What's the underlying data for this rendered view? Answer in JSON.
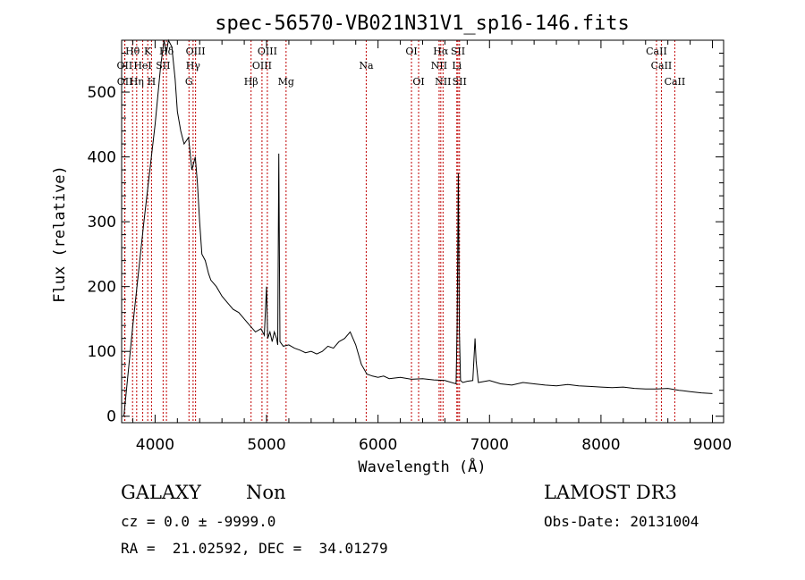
{
  "chart_data": {
    "type": "line",
    "title": "spec-56570-VB021N31V1_sp16-146.fits",
    "xlabel": "Wavelength (Å)",
    "ylabel": "Flux (relative)",
    "xlim": [
      3700,
      9100
    ],
    "ylim": [
      -10,
      580
    ],
    "xticks": [
      4000,
      5000,
      6000,
      7000,
      8000,
      9000
    ],
    "yticks": [
      0,
      100,
      200,
      300,
      400,
      500
    ],
    "grid": false,
    "series": [
      {
        "x": [
          3720,
          3800,
          3900,
          4000,
          4050,
          4080,
          4100,
          4120,
          4150,
          4180,
          4200,
          4230,
          4260,
          4300,
          4330,
          4360,
          4380,
          4400,
          4420,
          4450,
          4480,
          4500,
          4550,
          4600,
          4650,
          4700,
          4750,
          4800,
          4850,
          4900,
          4950,
          4980,
          5000,
          5010,
          5030,
          5050,
          5070,
          5090,
          5100,
          5110,
          5120,
          5150,
          5200,
          5250,
          5300,
          5350,
          5400,
          5450,
          5500,
          5550,
          5600,
          5650,
          5700,
          5750,
          5800,
          5850,
          5900,
          5950,
          6000,
          6050,
          6100,
          6200,
          6300,
          6400,
          6500,
          6600,
          6700,
          6710,
          6720,
          6730,
          6740,
          6760,
          6800,
          6850,
          6870,
          6880,
          6900,
          7000,
          7100,
          7200,
          7300,
          7400,
          7500,
          7600,
          7700,
          7800,
          7900,
          8000,
          8100,
          8200,
          8300,
          8400,
          8500,
          8600,
          8700,
          8800,
          8900,
          9000
        ],
        "y": [
          0,
          140,
          300,
          450,
          540,
          580,
          560,
          590,
          570,
          520,
          470,
          440,
          420,
          430,
          380,
          400,
          360,
          300,
          250,
          240,
          220,
          210,
          200,
          185,
          175,
          165,
          160,
          150,
          140,
          130,
          135,
          125,
          200,
          120,
          130,
          115,
          130,
          120,
          110,
          405,
          115,
          108,
          110,
          105,
          102,
          98,
          100,
          96,
          100,
          108,
          105,
          115,
          120,
          130,
          110,
          80,
          65,
          62,
          60,
          62,
          58,
          60,
          57,
          58,
          56,
          55,
          50,
          140,
          375,
          130,
          55,
          52,
          54,
          55,
          120,
          85,
          52,
          55,
          50,
          48,
          52,
          50,
          48,
          47,
          49,
          47,
          46,
          45,
          44,
          45,
          43,
          42,
          42,
          43,
          40,
          38,
          36,
          35
        ]
      }
    ],
    "lines": [
      {
        "name": "OII",
        "x": 3727,
        "row": 2
      },
      {
        "name": "OII",
        "x": 3729,
        "row": 3
      },
      {
        "name": "Hθ",
        "x": 3798,
        "row": 1
      },
      {
        "name": "Hη",
        "x": 3835,
        "row": 3
      },
      {
        "name": "HeI",
        "x": 3889,
        "row": 2
      },
      {
        "name": "K",
        "x": 3934,
        "row": 1
      },
      {
        "name": "H",
        "x": 3968,
        "row": 3
      },
      {
        "name": "SII",
        "x": 4072,
        "row": 2
      },
      {
        "name": "Hδ",
        "x": 4102,
        "row": 1
      },
      {
        "name": "OIII",
        "x": 4363,
        "row": 1
      },
      {
        "name": "Hγ",
        "x": 4341,
        "row": 2
      },
      {
        "name": "G",
        "x": 4304,
        "row": 3
      },
      {
        "name": "Hβ",
        "x": 4861,
        "row": 3
      },
      {
        "name": "OIII",
        "x": 4959,
        "row": 2
      },
      {
        "name": "OIII",
        "x": 5007,
        "row": 1
      },
      {
        "name": "Mg",
        "x": 5175,
        "row": 3
      },
      {
        "name": "Na",
        "x": 5894,
        "row": 2
      },
      {
        "name": "OI",
        "x": 6300,
        "row": 1
      },
      {
        "name": "OI",
        "x": 6364,
        "row": 3
      },
      {
        "name": "NII",
        "x": 6548,
        "row": 2
      },
      {
        "name": "Hα",
        "x": 6563,
        "row": 1
      },
      {
        "name": "NII",
        "x": 6583,
        "row": 3
      },
      {
        "name": "SII",
        "x": 6717,
        "row": 1
      },
      {
        "name": "Li",
        "x": 6707,
        "row": 2
      },
      {
        "name": "SII",
        "x": 6731,
        "row": 3
      },
      {
        "name": "CaII",
        "x": 8498,
        "row": 1
      },
      {
        "name": "CaII",
        "x": 8542,
        "row": 2
      },
      {
        "name": "CaII",
        "x": 8662,
        "row": 3
      }
    ]
  },
  "info": {
    "object_class": "GALAXY",
    "subclass": "Non",
    "survey": "LAMOST DR3",
    "cz": "cz = 0.0 ± -9999.0",
    "obs_date": "Obs-Date: 20131004",
    "coords": "RA =  21.02592, DEC =  34.01279"
  }
}
